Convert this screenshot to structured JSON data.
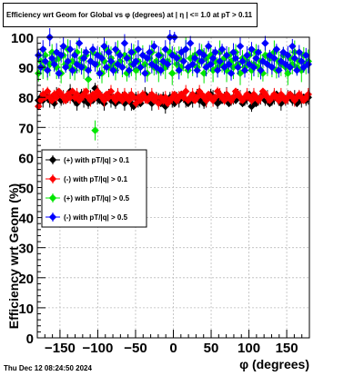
{
  "chart_data": {
    "type": "scatter",
    "title": "Efficiency wrt Geom for Global vs φ (degrees) at |   η  | <= 1.0 at pT > 0.11",
    "xlabel": "φ (degrees)",
    "ylabel": "Efficiency wrt Geom (%)",
    "xlim": [
      -180,
      180
    ],
    "ylim": [
      0,
      100
    ],
    "x_ticks": [
      "−150",
      "−100",
      "−50",
      "0",
      "50",
      "100",
      "150"
    ],
    "x_tick_values": [
      -150,
      -100,
      -50,
      0,
      50,
      100,
      150
    ],
    "y_ticks": [
      "0",
      "10",
      "20",
      "30",
      "40",
      "50",
      "60",
      "70",
      "80",
      "90",
      "100"
    ],
    "y_tick_values": [
      0,
      10,
      20,
      30,
      40,
      50,
      60,
      70,
      80,
      90,
      100
    ],
    "grid": true,
    "legend_position": "left-middle",
    "bin_width_deg": 3,
    "series": [
      {
        "name": "(+) with pT/|q| > 0.1",
        "color": "#000000",
        "x": [
          -178.5,
          -175.5,
          -172.5,
          -169.5,
          -166.5,
          -163.5,
          -160.5,
          -157.5,
          -154.5,
          -151.5,
          -148.5,
          -145.5,
          -142.5,
          -139.5,
          -136.5,
          -133.5,
          -130.5,
          -127.5,
          -124.5,
          -121.5,
          -118.5,
          -115.5,
          -112.5,
          -109.5,
          -106.5,
          -103.5,
          -100.5,
          -97.5,
          -94.5,
          -91.5,
          -88.5,
          -85.5,
          -82.5,
          -79.5,
          -76.5,
          -73.5,
          -70.5,
          -67.5,
          -64.5,
          -61.5,
          -58.5,
          -55.5,
          -52.5,
          -49.5,
          -46.5,
          -43.5,
          -40.5,
          -37.5,
          -34.5,
          -31.5,
          -28.5,
          -25.5,
          -22.5,
          -19.5,
          -16.5,
          -13.5,
          -10.5,
          -7.5,
          -4.5,
          -1.5,
          1.5,
          4.5,
          7.5,
          10.5,
          13.5,
          16.5,
          19.5,
          22.5,
          25.5,
          28.5,
          31.5,
          34.5,
          37.5,
          40.5,
          43.5,
          46.5,
          49.5,
          52.5,
          55.5,
          58.5,
          61.5,
          64.5,
          67.5,
          70.5,
          73.5,
          76.5,
          79.5,
          82.5,
          85.5,
          88.5,
          91.5,
          94.5,
          97.5,
          100.5,
          103.5,
          106.5,
          109.5,
          112.5,
          115.5,
          118.5,
          121.5,
          124.5,
          127.5,
          130.5,
          133.5,
          136.5,
          139.5,
          142.5,
          145.5,
          148.5,
          151.5,
          154.5,
          157.5,
          160.5,
          163.5,
          166.5,
          169.5,
          172.5,
          175.5,
          178.5
        ],
        "values": [
          79,
          80,
          79,
          81,
          80,
          79,
          80,
          78,
          81,
          80,
          79,
          80,
          79,
          80,
          82,
          80,
          79,
          78,
          80,
          81,
          79,
          80,
          78,
          80,
          79,
          83,
          80,
          79,
          80,
          78,
          80,
          81,
          79,
          80,
          78,
          80,
          79,
          80,
          78,
          79,
          80,
          78,
          77,
          80,
          79,
          78,
          80,
          81,
          79,
          80,
          78,
          79,
          80,
          79,
          78,
          80,
          77,
          79,
          80,
          79,
          78,
          80,
          79,
          81,
          80,
          79,
          78,
          80,
          79,
          80,
          81,
          79,
          80,
          78,
          79,
          80,
          81,
          80,
          79,
          78,
          80,
          79,
          80,
          81,
          78,
          79,
          80,
          79,
          81,
          80,
          78,
          79,
          80,
          81,
          77,
          80,
          78,
          79,
          80,
          81,
          79,
          80,
          78,
          79,
          80,
          81,
          79,
          78,
          80,
          79,
          80,
          81,
          79,
          80,
          78,
          80,
          79,
          80,
          79,
          80
        ]
      },
      {
        "name": "(-) with pT/|q| > 0.1",
        "color": "#ff0000",
        "x": [
          -178.5,
          -175.5,
          -172.5,
          -169.5,
          -166.5,
          -163.5,
          -160.5,
          -157.5,
          -154.5,
          -151.5,
          -148.5,
          -145.5,
          -142.5,
          -139.5,
          -136.5,
          -133.5,
          -130.5,
          -127.5,
          -124.5,
          -121.5,
          -118.5,
          -115.5,
          -112.5,
          -109.5,
          -106.5,
          -103.5,
          -100.5,
          -97.5,
          -94.5,
          -91.5,
          -88.5,
          -85.5,
          -82.5,
          -79.5,
          -76.5,
          -73.5,
          -70.5,
          -67.5,
          -64.5,
          -61.5,
          -58.5,
          -55.5,
          -52.5,
          -49.5,
          -46.5,
          -43.5,
          -40.5,
          -37.5,
          -34.5,
          -31.5,
          -28.5,
          -25.5,
          -22.5,
          -19.5,
          -16.5,
          -13.5,
          -10.5,
          -7.5,
          -4.5,
          -1.5,
          1.5,
          4.5,
          7.5,
          10.5,
          13.5,
          16.5,
          19.5,
          22.5,
          25.5,
          28.5,
          31.5,
          34.5,
          37.5,
          40.5,
          43.5,
          46.5,
          49.5,
          52.5,
          55.5,
          58.5,
          61.5,
          64.5,
          67.5,
          70.5,
          73.5,
          76.5,
          79.5,
          82.5,
          85.5,
          88.5,
          91.5,
          94.5,
          97.5,
          100.5,
          103.5,
          106.5,
          109.5,
          112.5,
          115.5,
          118.5,
          121.5,
          124.5,
          127.5,
          130.5,
          133.5,
          136.5,
          139.5,
          142.5,
          145.5,
          148.5,
          151.5,
          154.5,
          157.5,
          160.5,
          163.5,
          166.5,
          169.5,
          172.5,
          175.5,
          178.5
        ],
        "values": [
          77,
          79,
          81,
          80,
          82,
          80,
          79,
          81,
          80,
          82,
          81,
          80,
          79,
          81,
          80,
          82,
          80,
          81,
          79,
          80,
          81,
          82,
          80,
          79,
          81,
          80,
          82,
          81,
          80,
          79,
          81,
          80,
          82,
          80,
          79,
          81,
          80,
          79,
          81,
          80,
          79,
          81,
          80,
          78,
          80,
          79,
          81,
          80,
          79,
          80,
          81,
          79,
          80,
          78,
          80,
          79,
          80,
          78,
          79,
          80,
          81,
          79,
          80,
          81,
          80,
          82,
          79,
          80,
          81,
          79,
          80,
          82,
          81,
          80,
          79,
          81,
          80,
          79,
          80,
          82,
          81,
          80,
          79,
          81,
          80,
          79,
          80,
          82,
          81,
          80,
          79,
          80,
          81,
          80,
          79,
          81,
          80,
          79,
          80,
          82,
          81,
          80,
          79,
          80,
          81,
          80,
          79,
          81,
          80,
          79,
          80,
          81,
          80,
          79,
          80,
          81,
          80,
          79,
          80,
          81
        ]
      },
      {
        "name": "(+) with pT/|q| > 0.5",
        "color": "#00e600",
        "x": [
          -178.5,
          -175.5,
          -172.5,
          -169.5,
          -166.5,
          -163.5,
          -160.5,
          -157.5,
          -154.5,
          -151.5,
          -148.5,
          -145.5,
          -142.5,
          -139.5,
          -136.5,
          -133.5,
          -130.5,
          -127.5,
          -124.5,
          -121.5,
          -118.5,
          -115.5,
          -112.5,
          -109.5,
          -106.5,
          -103.5,
          -100.5,
          -97.5,
          -94.5,
          -91.5,
          -88.5,
          -85.5,
          -82.5,
          -79.5,
          -76.5,
          -73.5,
          -70.5,
          -67.5,
          -64.5,
          -61.5,
          -58.5,
          -55.5,
          -52.5,
          -49.5,
          -46.5,
          -43.5,
          -40.5,
          -37.5,
          -34.5,
          -31.5,
          -28.5,
          -25.5,
          -22.5,
          -19.5,
          -16.5,
          -13.5,
          -10.5,
          -7.5,
          -4.5,
          -1.5,
          1.5,
          4.5,
          7.5,
          10.5,
          13.5,
          16.5,
          19.5,
          22.5,
          25.5,
          28.5,
          31.5,
          34.5,
          37.5,
          40.5,
          43.5,
          46.5,
          49.5,
          52.5,
          55.5,
          58.5,
          61.5,
          64.5,
          67.5,
          70.5,
          73.5,
          76.5,
          79.5,
          82.5,
          85.5,
          88.5,
          91.5,
          94.5,
          97.5,
          100.5,
          103.5,
          106.5,
          109.5,
          112.5,
          115.5,
          118.5,
          121.5,
          124.5,
          127.5,
          130.5,
          133.5,
          136.5,
          139.5,
          142.5,
          145.5,
          148.5,
          151.5,
          154.5,
          157.5,
          160.5,
          163.5,
          166.5,
          169.5,
          172.5,
          175.5,
          178.5
        ],
        "values": [
          88,
          92,
          90,
          94,
          89,
          91,
          95,
          92,
          90,
          93,
          88,
          94,
          91,
          96,
          90,
          92,
          89,
          95,
          91,
          93,
          90,
          94,
          86,
          92,
          95,
          69,
          91,
          94,
          88,
          92,
          96,
          90,
          93,
          91,
          89,
          95,
          92,
          90,
          94,
          88,
          93,
          91,
          95,
          89,
          92,
          90,
          94,
          91,
          88,
          93,
          95,
          90,
          92,
          89,
          94,
          91,
          90,
          92,
          95,
          88,
          94,
          91,
          93,
          90,
          92,
          96,
          89,
          93,
          91,
          94,
          90,
          92,
          95,
          88,
          93,
          91,
          94,
          89,
          92,
          90,
          95,
          91,
          93,
          89,
          94,
          92,
          90,
          95,
          91,
          88,
          93,
          90,
          92,
          94,
          89,
          91,
          95,
          90,
          92,
          88,
          94,
          91,
          93,
          90,
          95,
          89,
          92,
          91,
          94,
          90,
          88,
          93,
          91,
          95,
          90,
          92,
          89,
          94,
          91,
          92
        ]
      },
      {
        "name": "(-) with pT/|q| > 0.5",
        "color": "#0000ff",
        "x": [
          -178.5,
          -175.5,
          -172.5,
          -169.5,
          -166.5,
          -163.5,
          -160.5,
          -157.5,
          -154.5,
          -151.5,
          -148.5,
          -145.5,
          -142.5,
          -139.5,
          -136.5,
          -133.5,
          -130.5,
          -127.5,
          -124.5,
          -121.5,
          -118.5,
          -115.5,
          -112.5,
          -109.5,
          -106.5,
          -103.5,
          -100.5,
          -97.5,
          -94.5,
          -91.5,
          -88.5,
          -85.5,
          -82.5,
          -79.5,
          -76.5,
          -73.5,
          -70.5,
          -67.5,
          -64.5,
          -61.5,
          -58.5,
          -55.5,
          -52.5,
          -49.5,
          -46.5,
          -43.5,
          -40.5,
          -37.5,
          -34.5,
          -31.5,
          -28.5,
          -25.5,
          -22.5,
          -19.5,
          -16.5,
          -13.5,
          -10.5,
          -7.5,
          -4.5,
          -1.5,
          1.5,
          4.5,
          7.5,
          10.5,
          13.5,
          16.5,
          19.5,
          22.5,
          25.5,
          28.5,
          31.5,
          34.5,
          37.5,
          40.5,
          43.5,
          46.5,
          49.5,
          52.5,
          55.5,
          58.5,
          61.5,
          64.5,
          67.5,
          70.5,
          73.5,
          76.5,
          79.5,
          82.5,
          85.5,
          88.5,
          91.5,
          94.5,
          97.5,
          100.5,
          103.5,
          106.5,
          109.5,
          112.5,
          115.5,
          118.5,
          121.5,
          124.5,
          127.5,
          130.5,
          133.5,
          136.5,
          139.5,
          142.5,
          145.5,
          148.5,
          151.5,
          154.5,
          157.5,
          160.5,
          163.5,
          166.5,
          169.5,
          172.5,
          175.5,
          178.5
        ],
        "values": [
          94,
          90,
          96,
          92,
          89,
          100,
          93,
          91,
          95,
          88,
          94,
          97,
          90,
          92,
          96,
          89,
          94,
          91,
          98,
          90,
          93,
          95,
          89,
          92,
          96,
          91,
          94,
          88,
          93,
          97,
          90,
          95,
          92,
          89,
          96,
          91,
          94,
          90,
          98,
          93,
          89,
          95,
          91,
          92,
          96,
          90,
          94,
          88,
          93,
          95,
          91,
          97,
          90,
          94,
          89,
          92,
          96,
          91,
          100,
          94,
          100,
          93,
          89,
          95,
          92,
          96,
          90,
          98,
          91,
          93,
          89,
          95,
          92,
          94,
          90,
          97,
          91,
          93,
          95,
          89,
          92,
          96,
          90,
          94,
          91,
          88,
          95,
          93,
          90,
          97,
          92,
          89,
          94,
          91,
          96,
          90,
          93,
          95,
          89,
          92,
          98,
          91,
          94,
          90,
          93,
          96,
          89,
          92,
          95,
          91,
          94,
          90,
          97,
          93,
          89,
          95,
          92,
          90,
          94,
          91
        ]
      }
    ]
  },
  "header": {
    "title": "Efficiency wrt Geom for Global vs φ (degrees) at |   η  | <= 1.0 at pT > 0.11"
  },
  "footer": {
    "timestamp": "Thu Dec 12 08:24:50 2024"
  }
}
